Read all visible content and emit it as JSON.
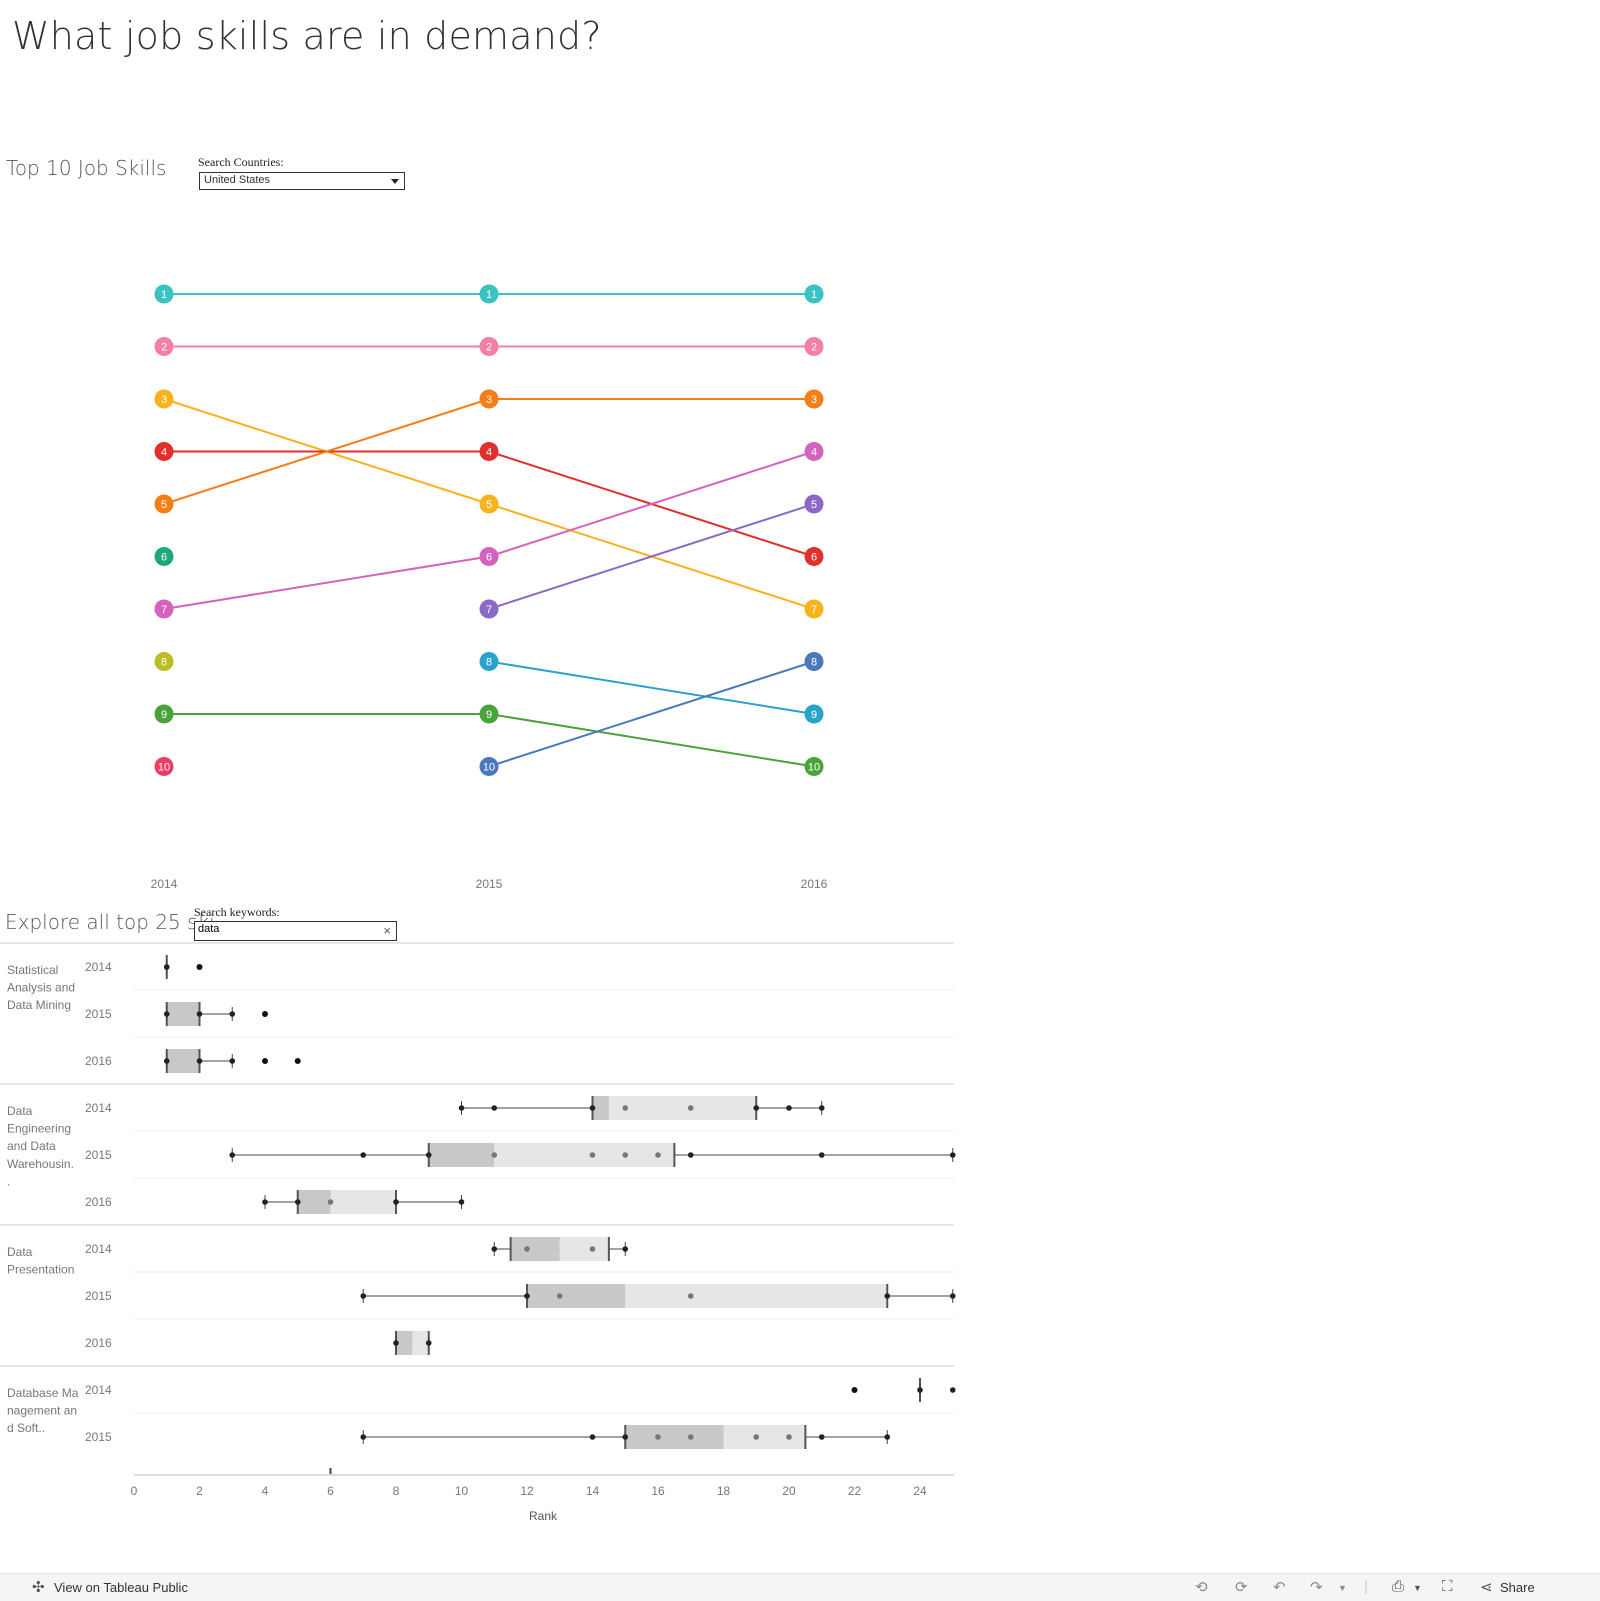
{
  "dashboard": {
    "title": "What job skills are in demand?"
  },
  "top10": {
    "title": "Top 10 Job Skills",
    "country_filter": {
      "label": "Search Countries:",
      "value": "United States"
    }
  },
  "explore": {
    "title": "Explore all top 25 ski",
    "keyword_filter": {
      "label": "Search keywords:",
      "value": "data"
    }
  },
  "footer": {
    "view_label": "View on Tableau Public",
    "share_label": "Share"
  },
  "chart_data": [
    {
      "type": "line",
      "title": "",
      "x": [
        "2014",
        "2015",
        "2016"
      ],
      "y_inverted": true,
      "ylim": [
        1,
        10
      ],
      "series": [
        {
          "color": "#3cc2c0",
          "values": [
            1,
            1,
            1
          ]
        },
        {
          "color": "#f47fa5",
          "values": [
            2,
            2,
            2
          ]
        },
        {
          "color": "#f6b31c",
          "values": [
            3,
            5,
            7
          ]
        },
        {
          "color": "#e02f2c",
          "values": [
            4,
            4,
            6
          ]
        },
        {
          "color": "#f57e17",
          "values": [
            5,
            3,
            3
          ]
        },
        {
          "color": "#1fa87c",
          "values": [
            6,
            null,
            null
          ]
        },
        {
          "color": "#d463bd",
          "values": [
            7,
            6,
            4
          ]
        },
        {
          "color": "#bcbd22",
          "values": [
            8,
            null,
            null
          ]
        },
        {
          "color": "#4aa23a",
          "values": [
            9,
            9,
            10
          ]
        },
        {
          "color": "#ec3e65",
          "values": [
            10,
            null,
            null
          ]
        },
        {
          "color": "#8a6ac6",
          "values": [
            null,
            7,
            5
          ]
        },
        {
          "color": "#2aa3cc",
          "values": [
            null,
            8,
            9
          ]
        },
        {
          "color": "#4a78bd",
          "values": [
            null,
            10,
            8
          ]
        }
      ],
      "grid": false
    },
    {
      "type": "box",
      "xlabel": "Rank",
      "xlim": [
        0,
        25
      ],
      "xticks": [
        0,
        2,
        4,
        6,
        8,
        10,
        12,
        14,
        16,
        18,
        20,
        22,
        24
      ],
      "groups": [
        {
          "label": "Statistical Analysis and Data Mining",
          "label_lines": [
            "Statistical",
            "Analysis and",
            "Data Mining"
          ],
          "rows": [
            {
              "year": "2014",
              "whisker": [
                1,
                1
              ],
              "q1": 1,
              "median": 1,
              "q3": 1,
              "points": [
                1,
                1
              ],
              "outliers": [
                2
              ]
            },
            {
              "year": "2015",
              "whisker": [
                1,
                3
              ],
              "q1": 1,
              "median": 2,
              "q3": 2,
              "points": [
                1,
                2,
                3
              ],
              "outliers": [
                4
              ]
            },
            {
              "year": "2016",
              "whisker": [
                1,
                3
              ],
              "q1": 1,
              "median": 2,
              "q3": 2,
              "points": [
                1,
                2,
                3
              ],
              "outliers": [
                4,
                5
              ]
            }
          ]
        },
        {
          "label": "Data Engineering and Data Warehousing",
          "label_lines": [
            "Data",
            "Engineering",
            "and Data",
            "Warehousin.",
            "."
          ],
          "rows": [
            {
              "year": "2014",
              "whisker": [
                10,
                21
              ],
              "q1": 14,
              "median": 14.5,
              "q3": 19,
              "points": [
                10,
                11,
                14,
                15,
                17,
                19,
                20,
                21
              ],
              "outliers": []
            },
            {
              "year": "2015",
              "whisker": [
                3,
                25
              ],
              "q1": 9,
              "median": 11,
              "q3": 16.5,
              "points": [
                3,
                7,
                9,
                11,
                14,
                15,
                16,
                17,
                21,
                25
              ],
              "outliers": []
            },
            {
              "year": "2016",
              "whisker": [
                4,
                10
              ],
              "q1": 5,
              "median": 6,
              "q3": 8,
              "points": [
                4,
                5,
                6,
                8,
                10
              ],
              "outliers": []
            }
          ]
        },
        {
          "label": "Data Presentation",
          "label_lines": [
            "Data",
            "Presentation"
          ],
          "rows": [
            {
              "year": "2014",
              "whisker": [
                11,
                15
              ],
              "q1": 11.5,
              "median": 13,
              "q3": 14.5,
              "points": [
                11,
                12,
                14,
                15
              ],
              "outliers": []
            },
            {
              "year": "2015",
              "whisker": [
                7,
                25
              ],
              "q1": 12,
              "median": 15,
              "q3": 23,
              "points": [
                7,
                12,
                13,
                17,
                23,
                25
              ],
              "outliers": []
            },
            {
              "year": "2016",
              "whisker": [
                8,
                9
              ],
              "q1": 8,
              "median": 8.5,
              "q3": 9,
              "points": [
                8,
                9
              ],
              "outliers": []
            }
          ]
        },
        {
          "label": "Database Management and Software",
          "label_lines": [
            "Database Ma",
            "nagement an",
            "d Soft.."
          ],
          "rows": [
            {
              "year": "2014",
              "whisker": [
                24,
                24
              ],
              "q1": 24,
              "median": 24,
              "q3": 24,
              "points": [
                24,
                25
              ],
              "outliers": [
                22
              ]
            },
            {
              "year": "2015",
              "whisker": [
                7,
                23
              ],
              "q1": 15,
              "median": 18,
              "q3": 20.5,
              "points": [
                7,
                14,
                15,
                16,
                17,
                19,
                20,
                21,
                23
              ],
              "outliers": []
            }
          ]
        }
      ]
    }
  ]
}
